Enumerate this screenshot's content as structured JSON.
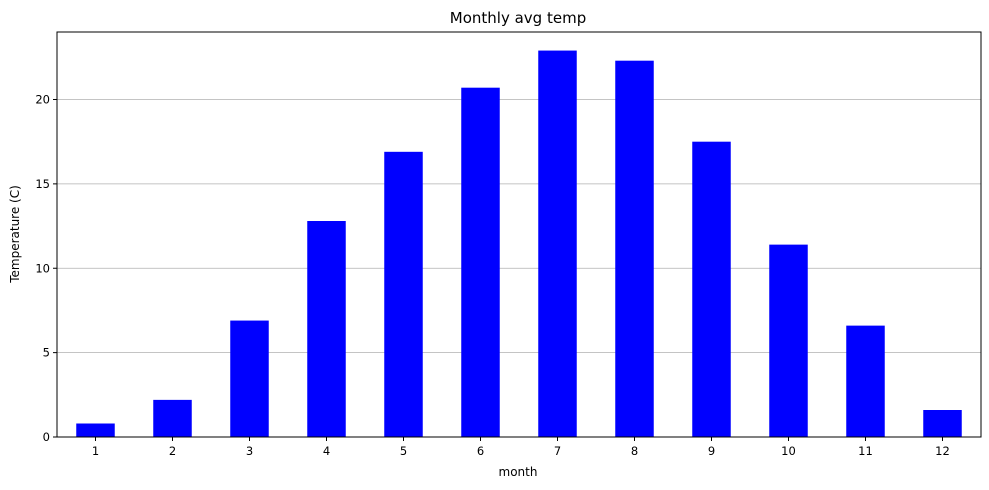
{
  "chart_data": {
    "type": "bar",
    "title": "Monthly avg temp",
    "xlabel": "month",
    "ylabel": "Temperature (C)",
    "categories": [
      "1",
      "2",
      "3",
      "4",
      "5",
      "6",
      "7",
      "8",
      "9",
      "10",
      "11",
      "12"
    ],
    "values": [
      0.8,
      2.2,
      6.9,
      12.8,
      16.9,
      20.7,
      22.9,
      22.3,
      17.5,
      11.4,
      6.6,
      1.6
    ],
    "ylim": [
      0,
      24
    ],
    "yticks": [
      0,
      5,
      10,
      15,
      20
    ],
    "grid": "horizontal",
    "bar_color": "#0000ff",
    "legend": "none"
  }
}
